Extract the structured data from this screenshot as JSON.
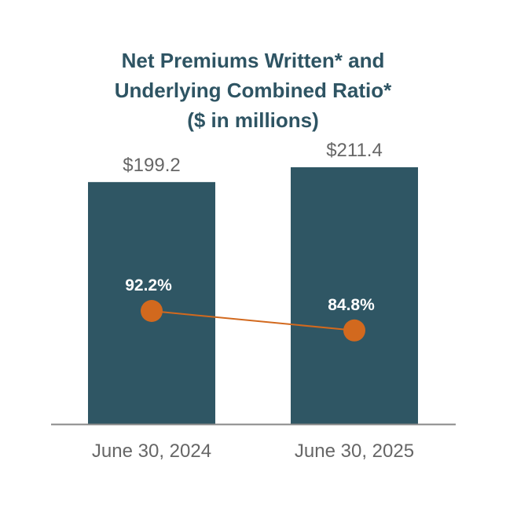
{
  "chart_data": {
    "type": "bar",
    "title_lines": [
      "Net Premiums Written* and",
      "Underlying Combined Ratio*",
      "($ in millions)"
    ],
    "categories": [
      "June 30, 2024",
      "June 30, 2025"
    ],
    "series": [
      {
        "type": "bar",
        "values": [
          199.2,
          211.4
        ],
        "labels": [
          "$199.2",
          "$211.4"
        ],
        "color": "#2f5664"
      },
      {
        "type": "line",
        "values": [
          92.2,
          84.8
        ],
        "labels": [
          "92.2%",
          "84.8%"
        ],
        "color": "#d2691e"
      }
    ],
    "legend": "none",
    "grid": false,
    "text_color": "#2e5463",
    "label_color": "#666666",
    "axis_color": "#888888",
    "point_label_color": "#ffffff"
  }
}
